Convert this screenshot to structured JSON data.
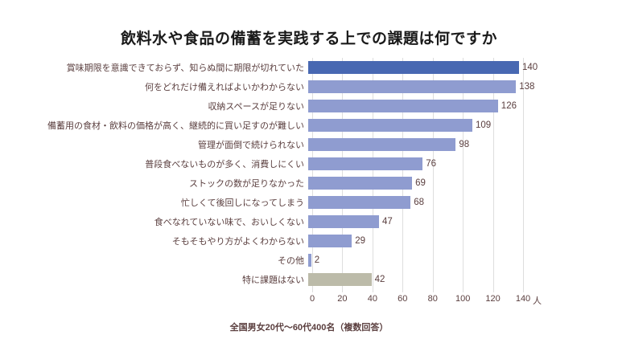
{
  "title": "飲料水や食品の備蓄を実践する上での課題は何ですか",
  "footnote": "全国男女20代〜60代400名（複数回答）",
  "chart_data": {
    "type": "bar",
    "orientation": "horizontal",
    "title": "飲料水や食品の備蓄を実践する上での課題は何ですか",
    "categories": [
      "賞味期限を意識できておらず、知らぬ間に期限が切れていた",
      "何をどれだけ備えればよいかわからない",
      "収納スペースが足りない",
      "備蓄用の食材・飲料の価格が高く、継続的に買い足すのが難しい",
      "管理が面倒で続けられない",
      "普段食べないものが多く、消費しにくい",
      "ストックの数が足りなかった",
      "忙しくて後回しになってしまう",
      "食べなれていない味で、おいしくない",
      "そもそもやり方がよくわからない",
      "その他",
      "特に課題はない"
    ],
    "values": [
      140,
      138,
      126,
      109,
      98,
      76,
      69,
      68,
      47,
      29,
      2,
      42
    ],
    "bar_colors": [
      "#4868b2",
      "#8f9cd0",
      "#8f9cd0",
      "#8f9cd0",
      "#8f9cd0",
      "#8f9cd0",
      "#8f9cd0",
      "#8f9cd0",
      "#8f9cd0",
      "#8f9cd0",
      "#8f9cd0",
      "#bcbba9"
    ],
    "xlim": [
      0,
      140
    ],
    "x_ticks": [
      0,
      20,
      40,
      60,
      80,
      100,
      120,
      140
    ],
    "x_unit": "人",
    "grid": true,
    "legend": false,
    "data_labels": true,
    "source_note": "全国男女20代〜60代400名（複数回答）"
  },
  "colors": {
    "highlight_bar": "#4868b2",
    "default_bar": "#8f9cd0",
    "neutral_bar": "#bcbba9",
    "text": "#5a3e3e",
    "title_text": "#1a1a1a",
    "gridline": "#dedede",
    "background": "#ffffff"
  }
}
